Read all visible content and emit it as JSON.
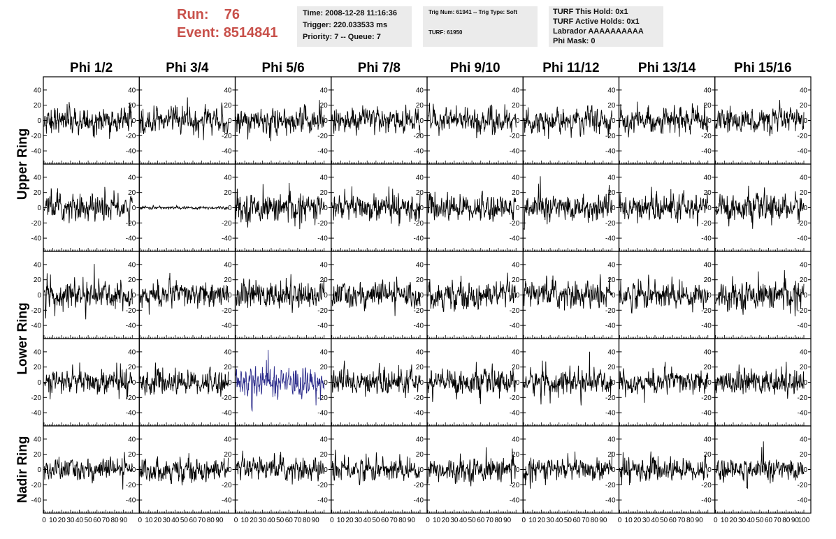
{
  "header": {
    "run_label": "Run:",
    "run_value": "76",
    "event_label": "Event:",
    "event_value": "8514841"
  },
  "info_box_1": {
    "time": "Time: 2008-12-28 11:16:36",
    "trigger": "Trigger: 220.033533 ms",
    "priority": "Priority: 7 -- Queue: 7"
  },
  "info_box_2": {
    "trig": "Trig Num: 61941 -- Trig Type: Soft",
    "turf": "TURF: 61950"
  },
  "info_box_3": {
    "hold": "TURF This Hold: 0x1",
    "active": "TURF Active Holds: 0x1",
    "labrador": "Labrador AAAAAAAAAA",
    "phi_mask": "Phi Mask: 0"
  },
  "colors": {
    "run_text": "#c8504a",
    "info_bg": "#ebebeb",
    "trace_default": "#000000",
    "trace_highlight": "#2a2a8a"
  },
  "chart_data": {
    "type": "line",
    "columns": [
      "Phi 1/2",
      "Phi 3/4",
      "Phi 5/6",
      "Phi 7/8",
      "Phi 9/10",
      "Phi 11/12",
      "Phi 13/14",
      "Phi 15/16"
    ],
    "rows": [
      "Upper Ring",
      "Lower Ring",
      "Nadir Ring"
    ],
    "xlim": [
      0,
      100
    ],
    "ylim": [
      -50,
      50
    ],
    "x_tick_labels": [
      "0",
      "10",
      "20",
      "30",
      "40",
      "50",
      "60",
      "70",
      "80",
      "90",
      "100"
    ],
    "y_tick_labels": [
      "40",
      "20",
      "0",
      "-20",
      "-40"
    ],
    "y_ticks": [
      40,
      20,
      0,
      -20,
      -40
    ],
    "panel_rows": 5,
    "panel_row_groups": [
      {
        "label": "Upper Ring",
        "panel_rows": [
          0,
          1
        ]
      },
      {
        "label": "Lower Ring",
        "panel_rows": [
          2,
          3
        ]
      },
      {
        "label": "Nadir Ring",
        "panel_rows": [
          4
        ]
      }
    ],
    "panels": [
      {
        "row": 0,
        "amplitude": 12,
        "peak": 30,
        "samples": 100
      },
      {
        "row": 1,
        "amplitude": 13,
        "peak": 35,
        "samples": 100
      },
      {
        "row": 2,
        "amplitude": 13,
        "peak": 35,
        "samples": 100
      },
      {
        "row": 3,
        "amplitude": 12,
        "peak": 38,
        "samples": 100
      },
      {
        "row": 4,
        "amplitude": 11,
        "peak": 35,
        "samples": 100
      }
    ],
    "special_panels": [
      {
        "row": 1,
        "column": 1,
        "note": "flat",
        "amplitude": 1.5
      },
      {
        "row": 3,
        "column": 2,
        "note": "highlighted",
        "color": "#2a2a8a",
        "amplitude": 15
      }
    ],
    "grid": false,
    "legend": "none"
  }
}
